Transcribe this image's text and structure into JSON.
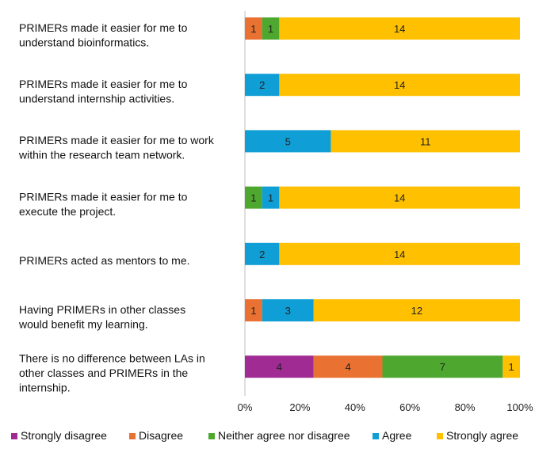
{
  "chart_data": {
    "type": "bar",
    "orientation": "horizontal",
    "stacked": true,
    "categories": [
      [
        "PRIMERs made it easier for me to",
        "understand bioinformatics."
      ],
      [
        "PRIMERs made it easier for me to",
        "understand internship activities."
      ],
      [
        "PRIMERs made it easier for me to work",
        "within the research team network."
      ],
      [
        "PRIMERs made it easier for me to",
        "execute the project."
      ],
      [
        "PRIMERs acted as mentors to me."
      ],
      [
        "Having PRIMERs in other classes",
        "would benefit my learning."
      ],
      [
        "There is no difference between LAs in",
        "other classes and PRIMERs in the",
        "internship."
      ]
    ],
    "series": [
      {
        "name": "Strongly disagree",
        "color": "#A02B93",
        "values": [
          0,
          0,
          0,
          0,
          0,
          0,
          4
        ]
      },
      {
        "name": "Disagree",
        "color": "#E97132",
        "values": [
          1,
          0,
          0,
          0,
          0,
          1,
          4
        ]
      },
      {
        "name": "Neither agree nor disagree",
        "color": "#4EA72E",
        "values": [
          1,
          0,
          0,
          1,
          0,
          0,
          7
        ]
      },
      {
        "name": "Agree",
        "color": "#0F9ED5",
        "values": [
          0,
          2,
          5,
          1,
          2,
          3,
          0
        ]
      },
      {
        "name": "Strongly agree",
        "color": "#FFC000",
        "values": [
          14,
          14,
          11,
          14,
          14,
          12,
          1
        ]
      }
    ],
    "xlim": [
      0,
      100
    ],
    "xticks": [
      "0%",
      "20%",
      "40%",
      "60%",
      "80%",
      "100%"
    ],
    "xlabel": "",
    "ylabel": "",
    "legend": "bottom",
    "grid": false
  }
}
